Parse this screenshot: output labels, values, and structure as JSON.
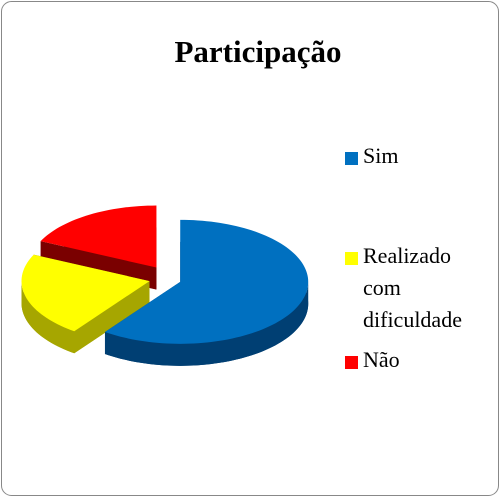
{
  "chart_data": {
    "type": "pie3d",
    "title": "Participação",
    "categories": [
      "Sim",
      "Realizado com dificuldade",
      "Não"
    ],
    "values": [
      60,
      22,
      18
    ],
    "colors": [
      "#0070c0",
      "#ffff00",
      "#ff0000"
    ],
    "side_colors": [
      "#003f73",
      "#a6a600",
      "#7a0000"
    ],
    "legend": "right",
    "exploded": true
  }
}
